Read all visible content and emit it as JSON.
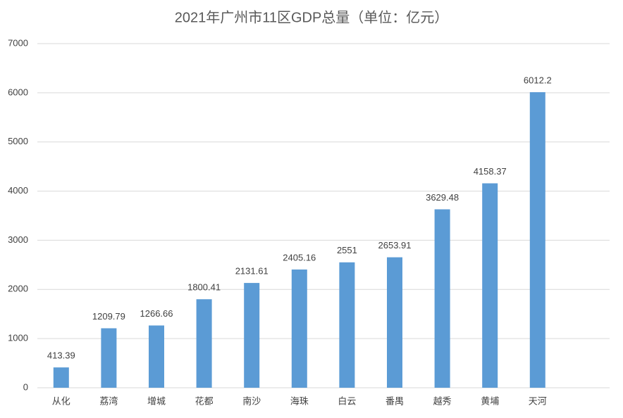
{
  "chart_data": {
    "type": "bar",
    "title": "2021年广州市11区GDP总量（单位：亿元）",
    "categories": [
      "从化",
      "荔湾",
      "增城",
      "花都",
      "南沙",
      "海珠",
      "白云",
      "番禺",
      "越秀",
      "黄埔",
      "天河"
    ],
    "values": [
      413.39,
      1209.79,
      1266.66,
      1800.41,
      2131.61,
      2405.16,
      2551,
      2653.91,
      3629.48,
      4158.37,
      6012.2
    ],
    "color": "#5b9bd5",
    "ylim": [
      0,
      7000
    ],
    "yticks": [
      0,
      1000,
      2000,
      3000,
      4000,
      5000,
      6000,
      7000
    ],
    "grid": true
  }
}
